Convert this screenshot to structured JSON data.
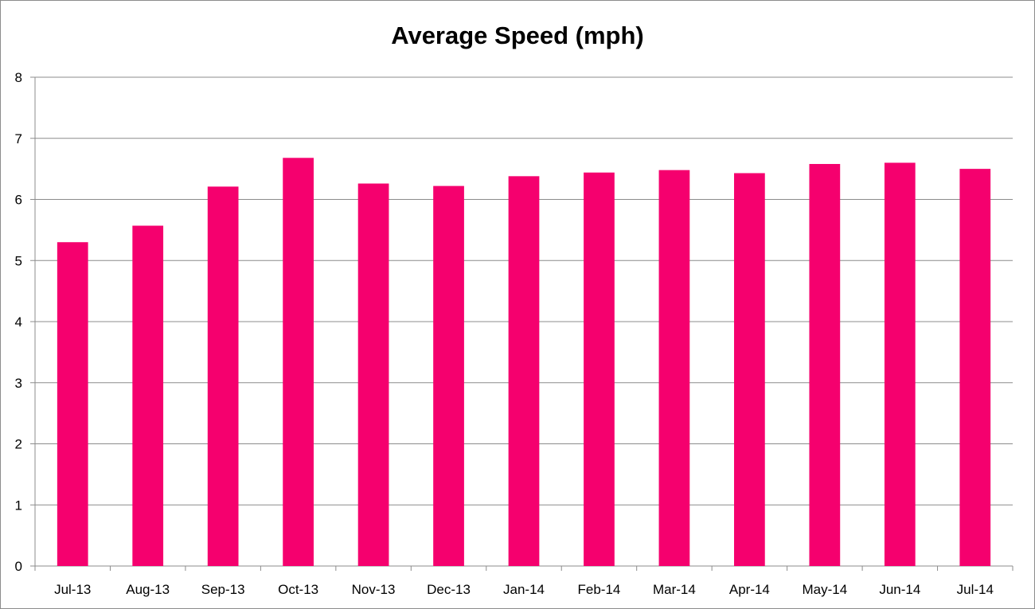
{
  "chart_data": {
    "type": "bar",
    "title": "Average Speed (mph)",
    "xlabel": "",
    "ylabel": "",
    "categories": [
      "Jul-13",
      "Aug-13",
      "Sep-13",
      "Oct-13",
      "Nov-13",
      "Dec-13",
      "Jan-14",
      "Feb-14",
      "Mar-14",
      "Apr-14",
      "May-14",
      "Jun-14",
      "Jul-14"
    ],
    "values": [
      5.3,
      5.57,
      6.21,
      6.68,
      6.26,
      6.22,
      6.38,
      6.44,
      6.48,
      6.43,
      6.58,
      6.6,
      6.5
    ],
    "ylim": [
      0,
      8
    ],
    "yticks": [
      0,
      1,
      2,
      3,
      4,
      5,
      6,
      7,
      8
    ],
    "grid": true,
    "legend": "none",
    "bar_color": "#f5006e",
    "grid_color": "#8c8c8c"
  }
}
